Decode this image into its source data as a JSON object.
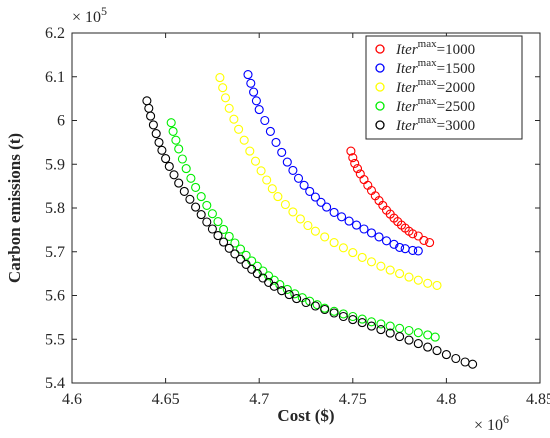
{
  "chart_data": {
    "type": "scatter",
    "xlabel": "Cost ($)",
    "ylabel": "Carbon emissions (t)",
    "x_exponent_label": "× 10",
    "x_exponent": "6",
    "y_exponent_label": "× 10",
    "y_exponent": "5",
    "xlim": [
      4600000,
      4850000
    ],
    "ylim": [
      540000,
      620000
    ],
    "x_ticks": [
      4600000,
      4650000,
      4700000,
      4750000,
      4800000,
      4850000
    ],
    "x_tick_labels": [
      "4.6",
      "4.65",
      "4.7",
      "4.75",
      "4.8",
      "4.85"
    ],
    "y_ticks": [
      540000,
      550000,
      560000,
      570000,
      580000,
      590000,
      600000,
      610000,
      620000
    ],
    "y_tick_labels": [
      "5.4",
      "5.5",
      "5.6",
      "5.7",
      "5.8",
      "5.9",
      "6",
      "6.1",
      "6.2"
    ],
    "grid": false,
    "legend_position": "top-right",
    "marker": "open-circle",
    "series": [
      {
        "name_prefix": "Iter",
        "name_sup": "max",
        "name_suffix": "=1000",
        "color": "#ff0000",
        "points": [
          [
            4749000,
            593000
          ],
          [
            4750000,
            591500
          ],
          [
            4751000,
            590200
          ],
          [
            4752500,
            589000
          ],
          [
            4754000,
            587800
          ],
          [
            4756000,
            586500
          ],
          [
            4758000,
            585200
          ],
          [
            4760000,
            584000
          ],
          [
            4762000,
            582800
          ],
          [
            4764000,
            581700
          ],
          [
            4766000,
            580600
          ],
          [
            4768000,
            579500
          ],
          [
            4770000,
            578600
          ],
          [
            4772000,
            577700
          ],
          [
            4774000,
            576900
          ],
          [
            4776000,
            576100
          ],
          [
            4778000,
            575400
          ],
          [
            4780000,
            574700
          ],
          [
            4782000,
            574100
          ],
          [
            4785000,
            573600
          ],
          [
            4788000,
            572600
          ],
          [
            4791000,
            572100
          ]
        ]
      },
      {
        "name_prefix": "Iter",
        "name_sup": "max",
        "name_suffix": "=1500",
        "color": "#0000ff",
        "points": [
          [
            4694000,
            610500
          ],
          [
            4695500,
            608500
          ],
          [
            4697000,
            606500
          ],
          [
            4698500,
            604500
          ],
          [
            4700000,
            602500
          ],
          [
            4703000,
            600000
          ],
          [
            4706000,
            597500
          ],
          [
            4709000,
            595000
          ],
          [
            4712000,
            592700
          ],
          [
            4715000,
            590500
          ],
          [
            4718000,
            588600
          ],
          [
            4721000,
            586800
          ],
          [
            4724000,
            585200
          ],
          [
            4727000,
            583800
          ],
          [
            4730000,
            582500
          ],
          [
            4733000,
            581300
          ],
          [
            4736000,
            580200
          ],
          [
            4740000,
            579000
          ],
          [
            4744000,
            578000
          ],
          [
            4748000,
            577000
          ],
          [
            4752000,
            576100
          ],
          [
            4756000,
            575200
          ],
          [
            4760000,
            574300
          ],
          [
            4764000,
            573400
          ],
          [
            4768000,
            572500
          ],
          [
            4772000,
            571700
          ],
          [
            4775000,
            571000
          ],
          [
            4778000,
            570700
          ],
          [
            4782000,
            570300
          ],
          [
            4785000,
            570200
          ]
        ]
      },
      {
        "name_prefix": "Iter",
        "name_sup": "max",
        "name_suffix": "=2000",
        "color": "#ffff00",
        "points": [
          [
            4679000,
            609800
          ],
          [
            4680500,
            607500
          ],
          [
            4682000,
            605200
          ],
          [
            4684000,
            602800
          ],
          [
            4686500,
            600300
          ],
          [
            4689000,
            598000
          ],
          [
            4692000,
            595500
          ],
          [
            4695000,
            593000
          ],
          [
            4698000,
            590700
          ],
          [
            4701000,
            588500
          ],
          [
            4704000,
            586400
          ],
          [
            4707000,
            584400
          ],
          [
            4710000,
            582600
          ],
          [
            4714000,
            580800
          ],
          [
            4718000,
            579100
          ],
          [
            4722000,
            577500
          ],
          [
            4726000,
            576000
          ],
          [
            4730000,
            574700
          ],
          [
            4735000,
            573400
          ],
          [
            4740000,
            572100
          ],
          [
            4745000,
            570900
          ],
          [
            4750000,
            569800
          ],
          [
            4755000,
            568700
          ],
          [
            4760000,
            567700
          ],
          [
            4765000,
            566700
          ],
          [
            4770000,
            565800
          ],
          [
            4775000,
            565000
          ],
          [
            4780000,
            564200
          ],
          [
            4785000,
            563500
          ],
          [
            4790000,
            562800
          ],
          [
            4795000,
            562300
          ]
        ]
      },
      {
        "name_prefix": "Iter",
        "name_sup": "max",
        "name_suffix": "=2500",
        "color": "#00ee00",
        "points": [
          [
            4653000,
            599500
          ],
          [
            4654000,
            597500
          ],
          [
            4655500,
            595500
          ],
          [
            4657000,
            593500
          ],
          [
            4659000,
            591200
          ],
          [
            4661000,
            589000
          ],
          [
            4663500,
            586800
          ],
          [
            4666000,
            584700
          ],
          [
            4669000,
            582600
          ],
          [
            4672000,
            580600
          ],
          [
            4675000,
            578700
          ],
          [
            4678000,
            576900
          ],
          [
            4681000,
            575100
          ],
          [
            4684000,
            573500
          ],
          [
            4687000,
            572000
          ],
          [
            4690000,
            570600
          ],
          [
            4693000,
            569200
          ],
          [
            4696000,
            567900
          ],
          [
            4699000,
            566700
          ],
          [
            4702000,
            565600
          ],
          [
            4705000,
            564500
          ],
          [
            4708000,
            563500
          ],
          [
            4711000,
            562500
          ],
          [
            4715000,
            561400
          ],
          [
            4719000,
            560400
          ],
          [
            4723000,
            559500
          ],
          [
            4727000,
            558700
          ],
          [
            4731000,
            557900
          ],
          [
            4735000,
            557100
          ],
          [
            4740000,
            556400
          ],
          [
            4745000,
            555800
          ],
          [
            4750000,
            555200
          ],
          [
            4755000,
            554600
          ],
          [
            4760000,
            554000
          ],
          [
            4765000,
            553500
          ],
          [
            4770000,
            553000
          ],
          [
            4775000,
            552500
          ],
          [
            4780000,
            552000
          ],
          [
            4785000,
            551500
          ],
          [
            4790000,
            551000
          ],
          [
            4794000,
            550500
          ]
        ]
      },
      {
        "name_prefix": "Iter",
        "name_sup": "max",
        "name_suffix": "=3000",
        "color": "#000000",
        "points": [
          [
            4640000,
            604500
          ],
          [
            4641000,
            602800
          ],
          [
            4642000,
            601000
          ],
          [
            4643500,
            599000
          ],
          [
            4645000,
            597000
          ],
          [
            4646500,
            595000
          ],
          [
            4648000,
            593200
          ],
          [
            4650000,
            591300
          ],
          [
            4652000,
            589500
          ],
          [
            4654500,
            587600
          ],
          [
            4657000,
            585700
          ],
          [
            4660000,
            583800
          ],
          [
            4663000,
            582000
          ],
          [
            4666000,
            580200
          ],
          [
            4669000,
            578500
          ],
          [
            4672000,
            576800
          ],
          [
            4675000,
            575200
          ],
          [
            4678000,
            573700
          ],
          [
            4681000,
            572200
          ],
          [
            4684000,
            570800
          ],
          [
            4687000,
            569500
          ],
          [
            4690000,
            568300
          ],
          [
            4693000,
            567100
          ],
          [
            4696000,
            566000
          ],
          [
            4699000,
            565000
          ],
          [
            4702000,
            564000
          ],
          [
            4705000,
            563000
          ],
          [
            4708000,
            562100
          ],
          [
            4712000,
            561100
          ],
          [
            4716000,
            560200
          ],
          [
            4720000,
            559300
          ],
          [
            4725000,
            558400
          ],
          [
            4730000,
            557600
          ],
          [
            4735000,
            556800
          ],
          [
            4740000,
            556000
          ],
          [
            4745000,
            555200
          ],
          [
            4750000,
            554500
          ],
          [
            4755000,
            553800
          ],
          [
            4760000,
            553000
          ],
          [
            4765000,
            552200
          ],
          [
            4770000,
            551400
          ],
          [
            4775000,
            550600
          ],
          [
            4780000,
            549800
          ],
          [
            4785000,
            549000
          ],
          [
            4790000,
            548200
          ],
          [
            4795000,
            547400
          ],
          [
            4800000,
            546500
          ],
          [
            4805000,
            545600
          ],
          [
            4810000,
            544800
          ],
          [
            4814000,
            544300
          ]
        ]
      }
    ]
  }
}
